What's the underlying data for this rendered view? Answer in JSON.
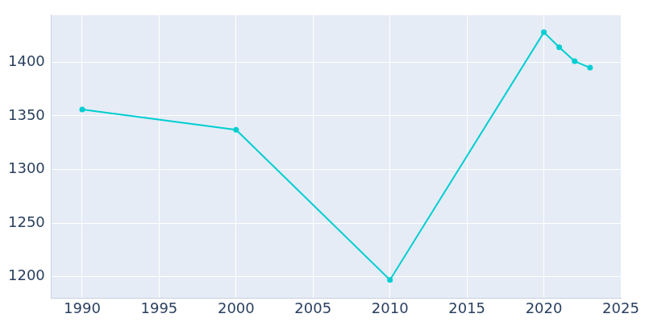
{
  "chart_data": {
    "type": "line",
    "x": [
      1990,
      2000,
      2010,
      2020,
      2021,
      2022,
      2023
    ],
    "values": [
      1356,
      1337,
      1197,
      1428,
      1414,
      1401,
      1395
    ],
    "color": "#00ced1",
    "marker": "circle",
    "xlim": [
      1988,
      2025
    ],
    "xticks": [
      1990,
      1995,
      2000,
      2005,
      2010,
      2015,
      2020,
      2025
    ],
    "ylim": [
      1180,
      1444
    ],
    "yticks": [
      1200,
      1250,
      1300,
      1350,
      1400
    ],
    "grid": true
  }
}
